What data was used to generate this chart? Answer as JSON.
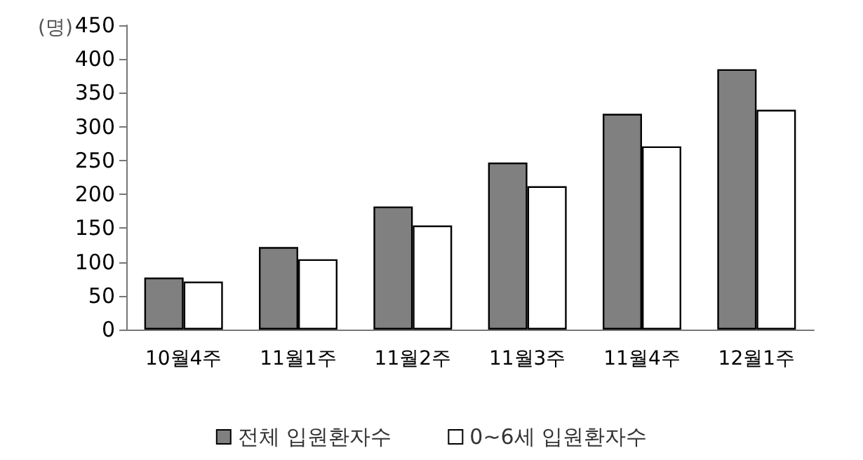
{
  "chart_data": {
    "type": "bar",
    "ylabel": "(명)",
    "categories": [
      "10월4주",
      "11월1주",
      "11월2주",
      "11월3주",
      "11월4주",
      "12월1주"
    ],
    "series": [
      {
        "name": "전체 입원환자수",
        "color": "#808080",
        "values": [
          77,
          122,
          182,
          247,
          319,
          385
        ]
      },
      {
        "name": "0~6세 입원환자수",
        "color": "#ffffff",
        "values": [
          71,
          104,
          154,
          212,
          271,
          325
        ]
      }
    ],
    "ylim": [
      0,
      450
    ],
    "yticks": [
      0,
      50,
      100,
      150,
      200,
      250,
      300,
      350,
      400,
      450
    ],
    "grid": false,
    "legend": "bottom"
  }
}
